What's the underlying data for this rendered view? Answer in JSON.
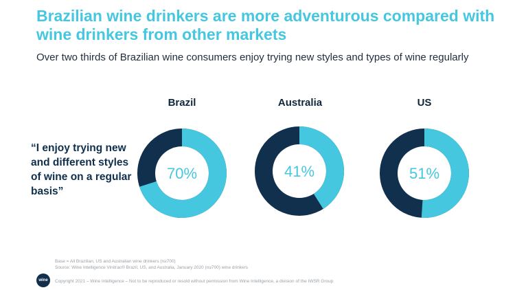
{
  "title": "Brazilian wine drinkers are more adventurous compared with wine drinkers from other markets",
  "subtitle": "Over two thirds of Brazilian wine consumers enjoy trying new styles and types of wine regularly",
  "quote": "“I enjoy trying new and different styles of wine on a regular basis”",
  "chart_data": {
    "type": "pie",
    "title": "",
    "categories": [
      "Brazil",
      "Australia",
      "US"
    ],
    "values": [
      70,
      41,
      51
    ],
    "value_labels": [
      "70%",
      "41%",
      "51%"
    ],
    "colors": {
      "value": "#45c7df",
      "remainder": "#10304d"
    }
  },
  "footer": {
    "base": "Base = All Brazilian, US and Australian wine drinkers (n≥700)",
    "source": "Source: Wine Intelligence Vinitrac® Brazil, US, and Australia, January 2020 (n≥700) wine drinkers",
    "copyright": "Copyright 2021 – Wine Intelligence – Not to be reproduced or resold without permission from Wine Intelligence, a division of the IWSR Group"
  },
  "logo": {
    "text": "wine",
    "icon": "wine-intelligence-logo"
  }
}
